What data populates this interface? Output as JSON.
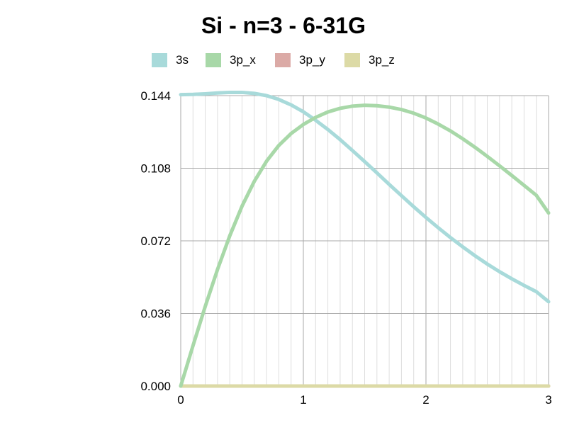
{
  "chart_data": {
    "type": "line",
    "title": "Si - n=3 - 6-31G",
    "xlabel": "",
    "ylabel": "",
    "xlim": [
      0,
      3
    ],
    "ylim": [
      0,
      0.144
    ],
    "x_ticks": [
      0,
      1,
      2,
      3
    ],
    "x_tick_labels": [
      "0",
      "1",
      "2",
      "3"
    ],
    "y_ticks": [
      0,
      0.036,
      0.072,
      0.108,
      0.144
    ],
    "y_tick_labels": [
      "0.000",
      "0.036",
      "0.072",
      "0.108",
      "0.144"
    ],
    "grid": true,
    "legend_position": "top",
    "series": [
      {
        "name": "3s",
        "color": "#a8dada",
        "x": [
          0,
          0.1,
          0.2,
          0.3,
          0.4,
          0.5,
          0.6,
          0.7,
          0.8,
          0.9,
          1.0,
          1.1,
          1.2,
          1.3,
          1.4,
          1.5,
          1.6,
          1.7,
          1.8,
          1.9,
          2.0,
          2.1,
          2.2,
          2.3,
          2.4,
          2.5,
          2.6,
          2.7,
          2.8,
          2.9,
          3.0
        ],
        "values": [
          0.1445,
          0.1446,
          0.1449,
          0.1453,
          0.1456,
          0.1456,
          0.1451,
          0.144,
          0.1421,
          0.1394,
          0.136,
          0.1318,
          0.1272,
          0.1222,
          0.1168,
          0.1113,
          0.1057,
          0.1,
          0.0944,
          0.0889,
          0.0836,
          0.0785,
          0.0736,
          0.069,
          0.0646,
          0.0605,
          0.0567,
          0.0532,
          0.0499,
          0.0468,
          0.0418
        ]
      },
      {
        "name": "3p_x",
        "color": "#a8d8a8",
        "x": [
          0,
          0.1,
          0.2,
          0.3,
          0.4,
          0.5,
          0.6,
          0.7,
          0.8,
          0.9,
          1.0,
          1.1,
          1.2,
          1.3,
          1.4,
          1.5,
          1.6,
          1.7,
          1.8,
          1.9,
          2.0,
          2.1,
          2.2,
          2.3,
          2.4,
          2.5,
          2.6,
          2.7,
          2.8,
          2.9,
          3.0
        ],
        "values": [
          0.0,
          0.02,
          0.0395,
          0.0578,
          0.0745,
          0.0892,
          0.1015,
          0.1115,
          0.1193,
          0.1252,
          0.1297,
          0.1332,
          0.1359,
          0.1377,
          0.1388,
          0.1392,
          0.139,
          0.1383,
          0.1371,
          0.1353,
          0.1329,
          0.1299,
          0.1265,
          0.1226,
          0.1184,
          0.1139,
          0.1092,
          0.1044,
          0.0995,
          0.0946,
          0.0858
        ]
      },
      {
        "name": "3p_y",
        "color": "#dbaaa6",
        "x": [
          0,
          3
        ],
        "values": [
          0,
          0
        ]
      },
      {
        "name": "3p_z",
        "color": "#dcdaa6",
        "x": [
          0,
          3
        ],
        "values": [
          0,
          0
        ]
      }
    ]
  }
}
